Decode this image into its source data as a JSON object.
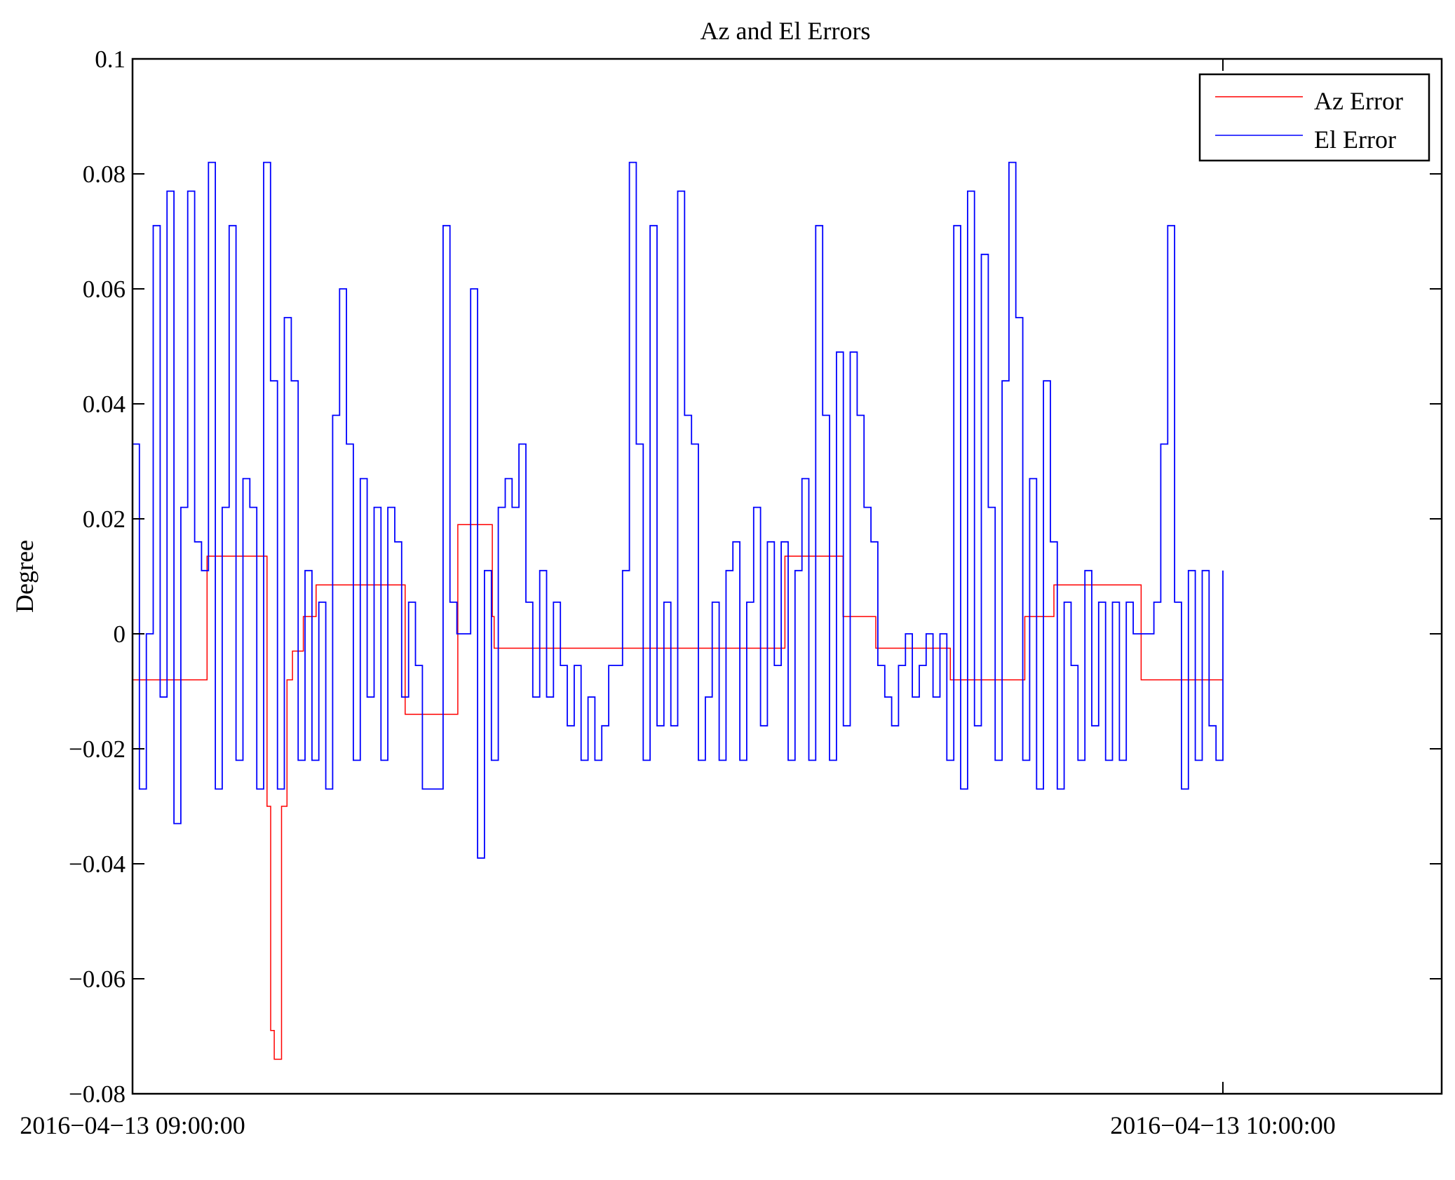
{
  "chart_data": {
    "type": "line",
    "title": "Az and El Errors",
    "xlabel": "",
    "ylabel": "Degree",
    "x_units": "minutes after 2016-04-13 09:00:00",
    "xlim": [
      0,
      72
    ],
    "ylim": [
      -0.08,
      0.1
    ],
    "grid": false,
    "legend_position": "top-right",
    "x_ticks": [
      {
        "value": 0,
        "label": "2016−04−13 09:00:00"
      },
      {
        "value": 60,
        "label": "2016−04−13 10:00:00"
      }
    ],
    "y_ticks": [
      {
        "value": 0.1,
        "label": "0.1"
      },
      {
        "value": 0.08,
        "label": "0.08"
      },
      {
        "value": 0.06,
        "label": "0.06"
      },
      {
        "value": 0.04,
        "label": "0.04"
      },
      {
        "value": 0.02,
        "label": "0.02"
      },
      {
        "value": 0,
        "label": "0"
      },
      {
        "value": -0.02,
        "label": "−0.02"
      },
      {
        "value": -0.04,
        "label": "−0.04"
      },
      {
        "value": -0.06,
        "label": "−0.06"
      },
      {
        "value": -0.08,
        "label": "−0.08"
      }
    ],
    "series": [
      {
        "name": "Az Error",
        "color": "#ff0000",
        "step": true,
        "x": [
          0,
          4.1,
          7.4,
          7.6,
          7.8,
          8.2,
          8.5,
          8.8,
          9.4,
          10.1,
          15.0,
          17.9,
          19.8,
          19.9,
          35.9,
          39.1,
          40.9,
          45.0,
          49.1,
          50.7,
          55.5,
          60
        ],
        "values": [
          -0.008,
          0.0135,
          -0.03,
          -0.069,
          -0.074,
          -0.03,
          -0.008,
          -0.003,
          0.003,
          0.0085,
          -0.014,
          0.019,
          0.003,
          -0.0025,
          0.0135,
          0.003,
          -0.0025,
          -0.008,
          0.003,
          0.0085,
          -0.008,
          -0.008
        ]
      },
      {
        "name": "El Error",
        "color": "#0000ff",
        "step": true,
        "x_range": [
          0,
          60
        ],
        "values": [
          0.033,
          -0.027,
          0,
          0.071,
          -0.011,
          0.077,
          -0.033,
          0.022,
          0.077,
          0.016,
          0.011,
          0.082,
          -0.027,
          0.022,
          0.071,
          -0.022,
          0.027,
          0.022,
          -0.027,
          0.082,
          0.044,
          -0.027,
          0.055,
          0.044,
          -0.022,
          0.011,
          -0.022,
          0.0055,
          -0.027,
          0.038,
          0.06,
          0.033,
          -0.022,
          0.027,
          -0.011,
          0.022,
          -0.022,
          0.022,
          0.016,
          -0.011,
          0.0055,
          -0.0055,
          -0.027,
          -0.027,
          -0.027,
          0.071,
          0.0055,
          0,
          0,
          0.06,
          -0.039,
          0.011,
          -0.022,
          0.022,
          0.027,
          0.022,
          0.033,
          0.0055,
          -0.011,
          0.011,
          -0.011,
          0.0055,
          -0.0055,
          -0.016,
          -0.0055,
          -0.022,
          -0.011,
          -0.022,
          -0.016,
          -0.0055,
          -0.0055,
          0.011,
          0.082,
          0.033,
          -0.022,
          0.071,
          -0.016,
          0.0055,
          -0.016,
          0.077,
          0.038,
          0.033,
          -0.022,
          -0.011,
          0.0055,
          -0.022,
          0.011,
          0.016,
          -0.022,
          0.0055,
          0.022,
          -0.016,
          0.016,
          -0.0055,
          0.016,
          -0.022,
          0.011,
          0.027,
          -0.022,
          0.071,
          0.038,
          -0.022,
          0.049,
          -0.016,
          0.049,
          0.038,
          0.022,
          0.016,
          -0.0055,
          -0.011,
          -0.016,
          -0.0055,
          0,
          -0.011,
          -0.0055,
          0,
          -0.011,
          0,
          -0.022,
          0.071,
          -0.027,
          0.077,
          -0.016,
          0.066,
          0.022,
          -0.022,
          0.044,
          0.082,
          0.055,
          -0.022,
          0.027,
          -0.027,
          0.044,
          0.016,
          -0.027,
          0.0055,
          -0.0055,
          -0.022,
          0.011,
          -0.016,
          0.0055,
          -0.022,
          0.0055,
          -0.022,
          0.0055,
          0,
          0,
          0,
          0.0055,
          0.033,
          0.071,
          0.0055,
          -0.027,
          0.011,
          -0.022,
          0.011,
          -0.016,
          -0.022,
          0.011
        ]
      }
    ]
  }
}
